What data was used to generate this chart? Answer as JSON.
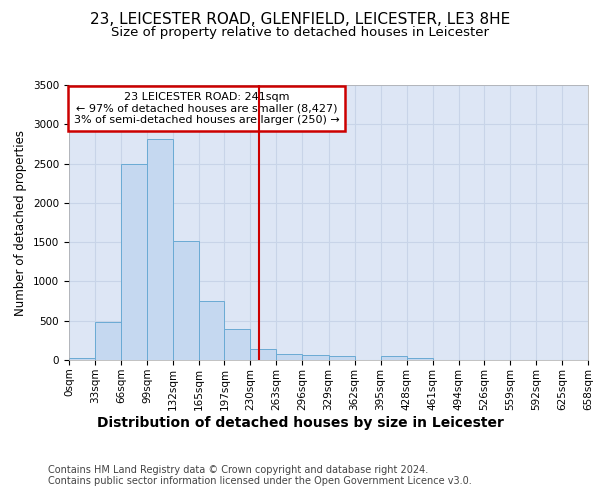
{
  "title1": "23, LEICESTER ROAD, GLENFIELD, LEICESTER, LE3 8HE",
  "title2": "Size of property relative to detached houses in Leicester",
  "xlabel": "Distribution of detached houses by size in Leicester",
  "ylabel": "Number of detached properties",
  "bin_edges": [
    0,
    33,
    66,
    99,
    132,
    165,
    197,
    230,
    263,
    296,
    329,
    362,
    395,
    428,
    461,
    494,
    526,
    559,
    592,
    625,
    658
  ],
  "bar_heights": [
    30,
    480,
    2500,
    2810,
    1510,
    750,
    390,
    145,
    80,
    60,
    55,
    0,
    55,
    30,
    0,
    0,
    0,
    0,
    0,
    0
  ],
  "bar_color": "#c5d8f0",
  "bar_edge_color": "#6aaad4",
  "property_line_x": 241,
  "property_line_color": "#cc0000",
  "annotation_title": "23 LEICESTER ROAD: 241sqm",
  "annotation_line1": "← 97% of detached houses are smaller (8,427)",
  "annotation_line2": "3% of semi-detached houses are larger (250) →",
  "annotation_box_color": "#cc0000",
  "annotation_bg_color": "#ffffff",
  "ylim": [
    0,
    3500
  ],
  "xlim": [
    0,
    658
  ],
  "yticks": [
    0,
    500,
    1000,
    1500,
    2000,
    2500,
    3000,
    3500
  ],
  "xtick_labels": [
    "0sqm",
    "33sqm",
    "66sqm",
    "99sqm",
    "132sqm",
    "165sqm",
    "197sqm",
    "230sqm",
    "263sqm",
    "296sqm",
    "329sqm",
    "362sqm",
    "395sqm",
    "428sqm",
    "461sqm",
    "494sqm",
    "526sqm",
    "559sqm",
    "592sqm",
    "625sqm",
    "658sqm"
  ],
  "grid_color": "#c8d4e8",
  "background_color": "#dde6f5",
  "footer1": "Contains HM Land Registry data © Crown copyright and database right 2024.",
  "footer2": "Contains public sector information licensed under the Open Government Licence v3.0.",
  "title1_fontsize": 11,
  "title2_fontsize": 9.5,
  "ylabel_fontsize": 8.5,
  "xlabel_fontsize": 10,
  "tick_fontsize": 7.5,
  "footer_fontsize": 7,
  "ann_fontsize": 8
}
